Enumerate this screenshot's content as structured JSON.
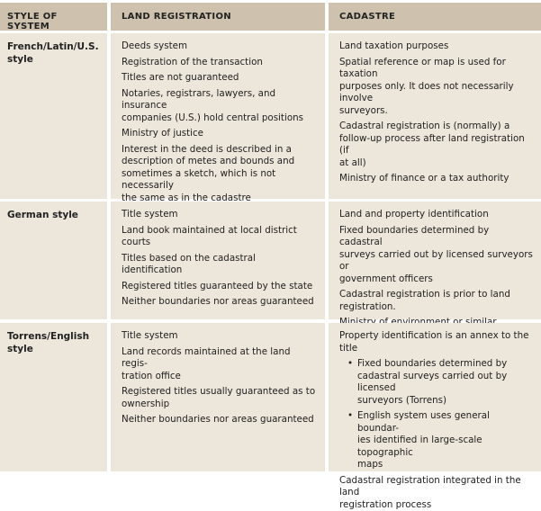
{
  "headers": [
    "STYLE OF SYSTEM",
    "LAND REGISTRATION",
    "CADASTRE"
  ],
  "rows": [
    {
      "style": "French/Latin/U.S.\nstyle",
      "land": [
        "Deeds system",
        "Registration of the transaction",
        "Titles are not guaranteed",
        "Notaries, registrars, lawyers, and insurance\ncompanies (U.S.) hold central positions",
        "Ministry of justice",
        "Interest in the deed is described in a\ndescription of metes and bounds and\nsometimes a sketch, which is not necessarily\nthe same as in the cadastre"
      ],
      "cadastre": [
        "Land taxation purposes",
        "Spatial reference or map is used for taxation\npurposes only. It does not necessarily involve\nsurveyors.",
        "Cadastral registration is (normally) a\nfollow-up process after land registration (if\nat all)",
        "Ministry of finance or a tax authority"
      ]
    },
    {
      "style": "German style",
      "land": [
        "Title system",
        "Land book maintained at local district\ncourts",
        "Titles based on the cadastral identification",
        "Registered titles guaranteed by the state",
        "Neither boundaries nor areas guaranteed"
      ],
      "cadastre": [
        "Land and property identification",
        "Fixed boundaries determined by cadastral\nsurveys carried out by licensed surveyors or\ngovernment officers",
        "Cadastral registration is prior to land\nregistration.",
        "Ministry of environment or similar"
      ]
    },
    {
      "style": "Torrens/English\nstyle",
      "land": [
        "Title system",
        "Land records maintained at the land regis-\ntration office",
        "Registered titles usually guaranteed as to\nownership",
        "Neither boundaries nor areas guaranteed"
      ],
      "cadastre": [
        "Property identification is an annex to the title",
        "Fixed boundaries determined by\ncadastral surveys carried out by licensed\nsurveyors (Torrens)",
        "English system uses general boundar-\nies identified in large-scale topographic\nmaps",
        "Cadastral registration integrated in the land\nregistration process"
      ],
      "cadastre_bullets": [
        1,
        2
      ]
    }
  ]
}
